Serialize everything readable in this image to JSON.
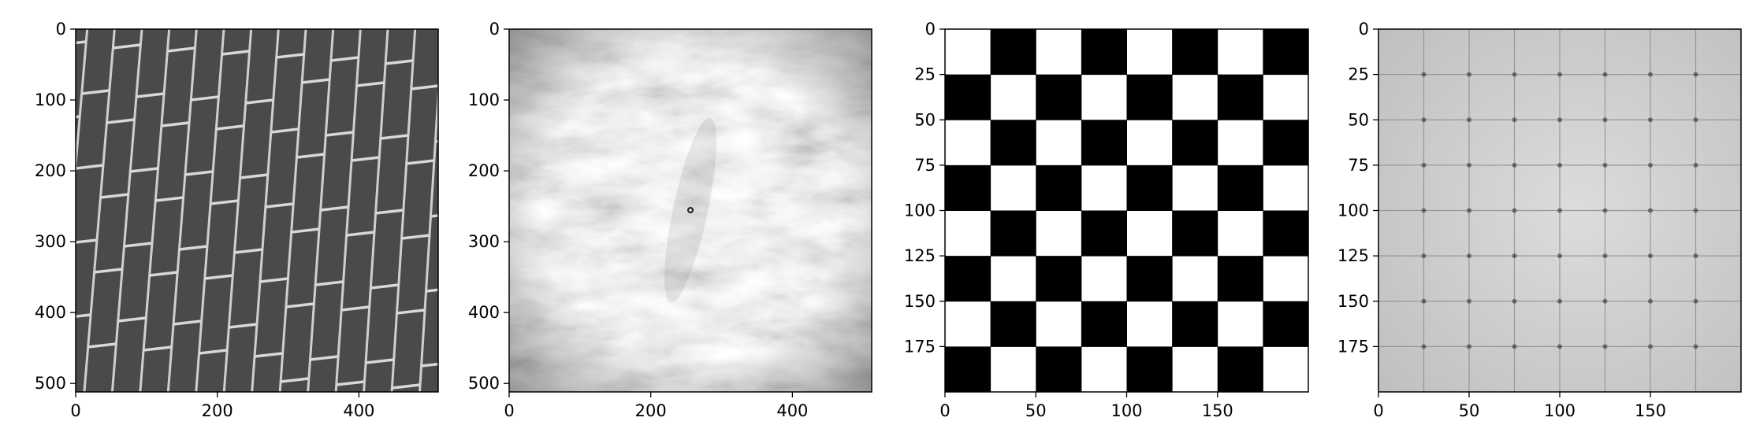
{
  "panels": [
    {
      "name": "brick-wall-image",
      "x_ticks": [
        {
          "value": 0,
          "label": "0"
        },
        {
          "value": 200,
          "label": "200"
        },
        {
          "value": 400,
          "label": "400"
        }
      ],
      "y_ticks": [
        {
          "value": 0,
          "label": "0"
        },
        {
          "value": 100,
          "label": "100"
        },
        {
          "value": 200,
          "label": "200"
        },
        {
          "value": 300,
          "label": "300"
        },
        {
          "value": 400,
          "label": "400"
        },
        {
          "value": 500,
          "label": "500"
        }
      ],
      "x_range": [
        0,
        512
      ],
      "y_range": [
        0,
        512
      ]
    },
    {
      "name": "noise-texture-image",
      "x_ticks": [
        {
          "value": 0,
          "label": "0"
        },
        {
          "value": 200,
          "label": "200"
        },
        {
          "value": 400,
          "label": "400"
        }
      ],
      "y_ticks": [
        {
          "value": 0,
          "label": "0"
        },
        {
          "value": 100,
          "label": "100"
        },
        {
          "value": 200,
          "label": "200"
        },
        {
          "value": 300,
          "label": "300"
        },
        {
          "value": 400,
          "label": "400"
        },
        {
          "value": 500,
          "label": "500"
        }
      ],
      "x_range": [
        0,
        512
      ],
      "y_range": [
        0,
        512
      ]
    },
    {
      "name": "checkerboard-image",
      "x_ticks": [
        {
          "value": 0,
          "label": "0"
        },
        {
          "value": 50,
          "label": "50"
        },
        {
          "value": 100,
          "label": "100"
        },
        {
          "value": 150,
          "label": "150"
        }
      ],
      "y_ticks": [
        {
          "value": 0,
          "label": "0"
        },
        {
          "value": 25,
          "label": "25"
        },
        {
          "value": 50,
          "label": "50"
        },
        {
          "value": 75,
          "label": "75"
        },
        {
          "value": 100,
          "label": "100"
        },
        {
          "value": 125,
          "label": "125"
        },
        {
          "value": 150,
          "label": "150"
        },
        {
          "value": 175,
          "label": "175"
        }
      ],
      "x_range": [
        0,
        200
      ],
      "y_range": [
        0,
        200
      ],
      "checker_cells": 8
    },
    {
      "name": "filtered-grid-image",
      "x_ticks": [
        {
          "value": 0,
          "label": "0"
        },
        {
          "value": 50,
          "label": "50"
        },
        {
          "value": 100,
          "label": "100"
        },
        {
          "value": 150,
          "label": "150"
        }
      ],
      "y_ticks": [
        {
          "value": 0,
          "label": "0"
        },
        {
          "value": 25,
          "label": "25"
        },
        {
          "value": 50,
          "label": "50"
        },
        {
          "value": 75,
          "label": "75"
        },
        {
          "value": 100,
          "label": "100"
        },
        {
          "value": 125,
          "label": "125"
        },
        {
          "value": 150,
          "label": "150"
        },
        {
          "value": 175,
          "label": "175"
        }
      ],
      "x_range": [
        0,
        200
      ],
      "y_range": [
        0,
        200
      ]
    }
  ]
}
